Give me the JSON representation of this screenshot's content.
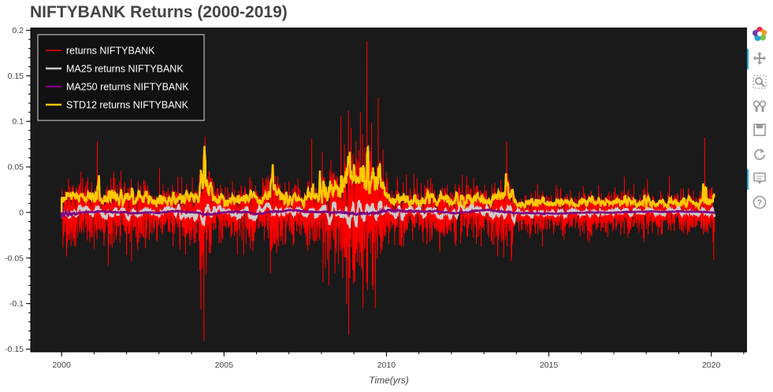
{
  "page": {
    "title": "NIFTYBANK Returns (2000-2019)"
  },
  "toolbar": {
    "items": [
      {
        "name": "bokeh-logo-icon",
        "active": false
      },
      {
        "name": "pan-icon",
        "active": true
      },
      {
        "name": "box-zoom-icon",
        "active": false
      },
      {
        "name": "wheel-zoom-icon",
        "active": false
      },
      {
        "name": "save-icon",
        "active": false
      },
      {
        "name": "reset-icon",
        "active": false
      },
      {
        "name": "hover-icon",
        "active": true
      },
      {
        "name": "help-icon",
        "active": false
      }
    ]
  },
  "chart_data": {
    "type": "line",
    "title": "NIFTYBANK Returns (2000-2019)",
    "xlabel": "Time(yrs)",
    "ylabel": "",
    "xlim": [
      1999.05,
      2021.1
    ],
    "ylim": [
      -0.153,
      0.203
    ],
    "x_ticks": [
      2000,
      2005,
      2010,
      2015,
      2020
    ],
    "x_tick_labels": [
      "2000",
      "2005",
      "2010",
      "2015",
      "2020"
    ],
    "y_ticks": [
      -0.15,
      -0.1,
      -0.05,
      0,
      0.05,
      0.1,
      0.15,
      0.2
    ],
    "y_tick_labels": [
      "-0.15",
      "-0.1",
      "-0.05",
      "0",
      "0.05",
      "0.1",
      "0.15",
      "0.2"
    ],
    "background": "#1a1a1a",
    "grid": false,
    "legend_position": "top-left",
    "x_range": [
      2000.0,
      2020.1
    ],
    "series": [
      {
        "name": "returns NIFTYBANK",
        "color": "#ff0000",
        "width": 1,
        "peaks": [
          [
            2004.38,
            -0.141
          ],
          [
            2009.4,
            0.188
          ],
          [
            2008.83,
            -0.127
          ],
          [
            2009.2,
            0.11
          ],
          [
            2008.83,
            0.112
          ],
          [
            2019.8,
            0.082
          ],
          [
            2001.1,
            0.078
          ],
          [
            2009.75,
            0.126
          ],
          [
            2009.66,
            -0.105
          ],
          [
            2004.45,
            -0.068
          ],
          [
            2008.6,
            0.106
          ],
          [
            2006.43,
            -0.067
          ],
          [
            2013.7,
            0.078
          ],
          [
            2007.7,
            0.081
          ]
        ]
      },
      {
        "name": "MA25 returns NIFTYBANK",
        "color": "#cccccc",
        "width": 2.5
      },
      {
        "name": "MA250 returns NIFTYBANK",
        "color": "#800080",
        "width": 2.5
      },
      {
        "name": "STD12 returns NIFTYBANK",
        "color": "#ffc800",
        "width": 2.5,
        "peaks": [
          [
            2004.4,
            0.073
          ],
          [
            2008.82,
            0.062
          ],
          [
            2009.8,
            0.054
          ],
          [
            2006.5,
            0.053
          ],
          [
            2001.15,
            0.041
          ],
          [
            2013.68,
            0.043
          ],
          [
            2019.75,
            0.032
          ],
          [
            2007.95,
            0.046
          ]
        ]
      }
    ]
  }
}
